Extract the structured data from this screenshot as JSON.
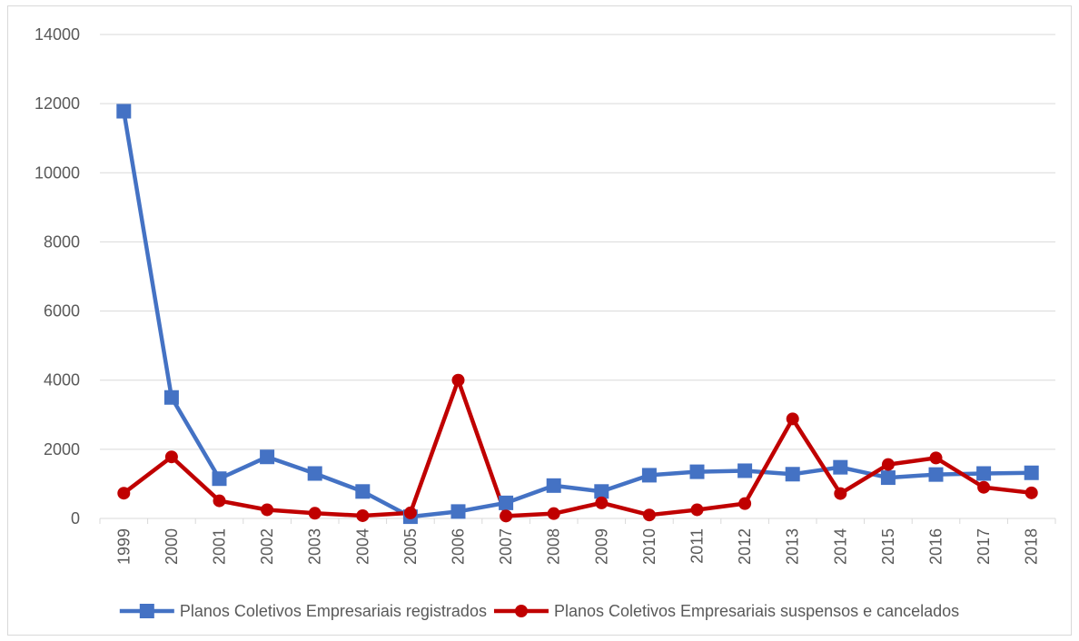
{
  "chart_data": {
    "type": "line",
    "title": "",
    "xlabel": "",
    "ylabel": "",
    "categories": [
      "1999",
      "2000",
      "2001",
      "2002",
      "2003",
      "2004",
      "2005",
      "2006",
      "2007",
      "2008",
      "2009",
      "2010",
      "2011",
      "2012",
      "2013",
      "2014",
      "2015",
      "2016",
      "2017",
      "2018"
    ],
    "ylim": [
      0,
      14000
    ],
    "yticks": [
      0,
      2000,
      4000,
      6000,
      8000,
      10000,
      12000,
      14000
    ],
    "grid": true,
    "legend_position": "bottom",
    "series": [
      {
        "name": "Planos Coletivos Empresariais registrados",
        "color": "#4472c4",
        "marker": "square",
        "values": [
          11780,
          3500,
          1150,
          1780,
          1300,
          780,
          50,
          200,
          450,
          950,
          780,
          1250,
          1350,
          1380,
          1280,
          1480,
          1180,
          1270,
          1300,
          1320
        ]
      },
      {
        "name": "Planos Coletivos Empresariais suspensos e cancelados",
        "color": "#c00000",
        "marker": "circle",
        "values": [
          730,
          1780,
          510,
          250,
          150,
          80,
          160,
          4000,
          70,
          140,
          450,
          100,
          250,
          430,
          2880,
          720,
          1560,
          1750,
          900,
          740
        ]
      }
    ]
  }
}
